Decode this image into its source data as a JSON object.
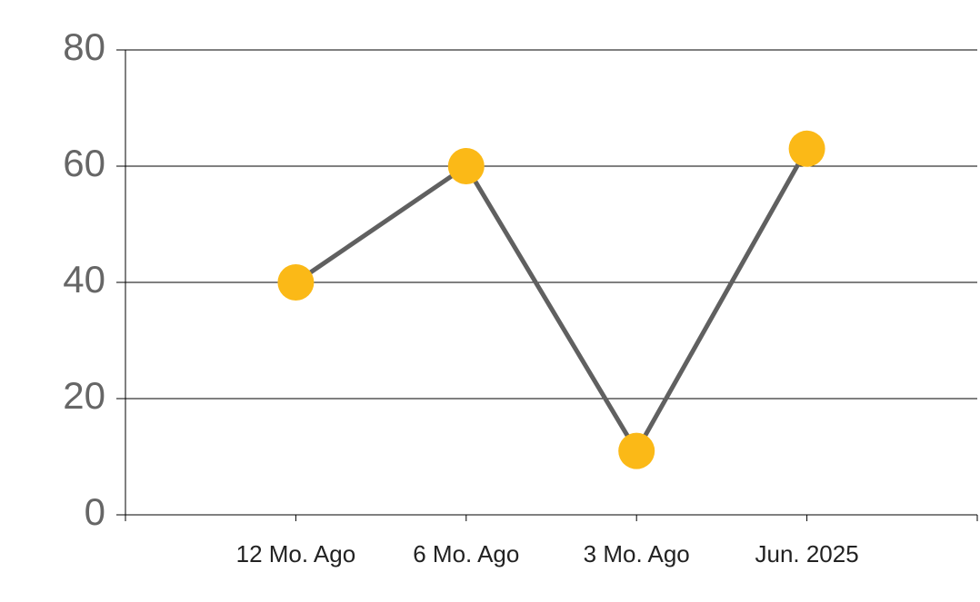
{
  "chart_data": {
    "type": "line",
    "categories": [
      "12 Mo. Ago",
      "6 Mo. Ago",
      "3 Mo. Ago",
      "Jun. 2025"
    ],
    "series": [
      {
        "values": [
          40,
          60,
          11,
          63
        ],
        "color": "#606060",
        "marker_color": "#fbb917"
      }
    ],
    "ylim": [
      0,
      80
    ],
    "yticks": [
      0,
      20,
      40,
      60,
      80
    ],
    "grid": true
  }
}
